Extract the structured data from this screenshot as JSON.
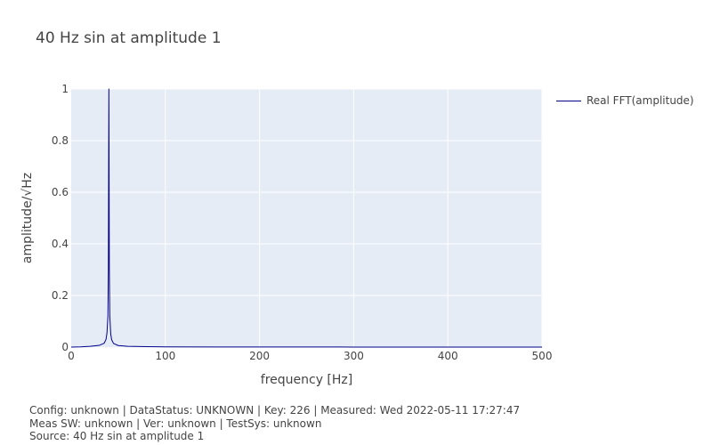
{
  "chart_data": {
    "type": "line",
    "title": "40 Hz sin at amplitude 1",
    "xlabel": "frequency [Hz]",
    "ylabel": "amplitude/√Hz",
    "xlim": [
      0,
      500
    ],
    "ylim": [
      0,
      1
    ],
    "xticks": [
      "0",
      "100",
      "200",
      "300",
      "400",
      "500"
    ],
    "yticks": [
      "0",
      "0.2",
      "0.4",
      "0.6",
      "0.8",
      "1"
    ],
    "grid": true,
    "legend_position": "right",
    "series": [
      {
        "name": "Real FFT(amplitude)",
        "color": "#00008b",
        "x": [
          0,
          10,
          20,
          30,
          35,
          37,
          38,
          39,
          39.5,
          40,
          40.5,
          41,
          42,
          43,
          45,
          50,
          60,
          80,
          100,
          150,
          200,
          300,
          400,
          500
        ],
        "y": [
          0.0,
          0.001,
          0.003,
          0.007,
          0.015,
          0.03,
          0.055,
          0.12,
          0.3,
          1.0,
          0.3,
          0.12,
          0.05,
          0.028,
          0.014,
          0.006,
          0.003,
          0.0015,
          0.001,
          0.0006,
          0.0004,
          0.0002,
          0.0001,
          0.0
        ]
      }
    ]
  },
  "footer": {
    "line1": "Config: unknown | DataStatus: UNKNOWN | Key: 226 | Measured: Wed 2022-05-11 17:27:47",
    "line2": "Meas SW: unknown | Ver: unknown | TestSys: unknown",
    "line3": "Source: 40 Hz sin at amplitude 1"
  }
}
